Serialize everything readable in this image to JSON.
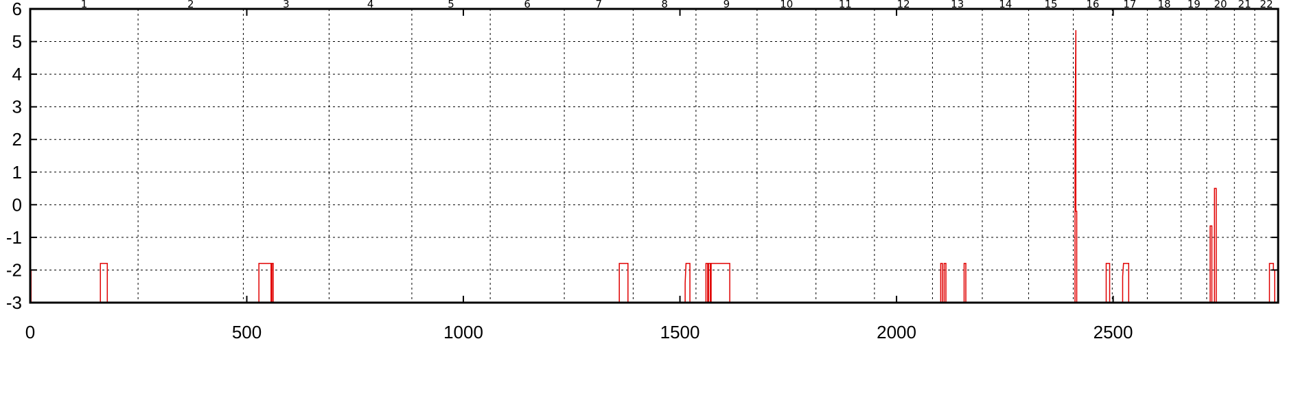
{
  "chart_data": {
    "type": "line",
    "title": "",
    "xlabel": "",
    "ylabel": "",
    "xlim": [
      0,
      2881
    ],
    "ylim": [
      -3,
      6
    ],
    "x_ticks": [
      0,
      500,
      1000,
      1500,
      2000,
      2500
    ],
    "y_ticks": [
      -3,
      -2,
      -1,
      0,
      1,
      2,
      3,
      4,
      5,
      6
    ],
    "grid": true,
    "line_color": "#e00000",
    "chromosomes": [
      {
        "label": "1",
        "start": 0,
        "end": 249
      },
      {
        "label": "2",
        "start": 249,
        "end": 492
      },
      {
        "label": "3",
        "start": 492,
        "end": 690
      },
      {
        "label": "4",
        "start": 690,
        "end": 881
      },
      {
        "label": "5",
        "start": 881,
        "end": 1062
      },
      {
        "label": "6",
        "start": 1062,
        "end": 1233
      },
      {
        "label": "7",
        "start": 1233,
        "end": 1392
      },
      {
        "label": "8",
        "start": 1392,
        "end": 1537
      },
      {
        "label": "9",
        "start": 1537,
        "end": 1678
      },
      {
        "label": "10",
        "start": 1678,
        "end": 1814
      },
      {
        "label": "11",
        "start": 1814,
        "end": 1949
      },
      {
        "label": "12",
        "start": 1949,
        "end": 2083
      },
      {
        "label": "13",
        "start": 2083,
        "end": 2198
      },
      {
        "label": "14",
        "start": 2198,
        "end": 2305
      },
      {
        "label": "15",
        "start": 2305,
        "end": 2408
      },
      {
        "label": "16",
        "start": 2408,
        "end": 2498
      },
      {
        "label": "17",
        "start": 2498,
        "end": 2579
      },
      {
        "label": "18",
        "start": 2579,
        "end": 2657
      },
      {
        "label": "19",
        "start": 2657,
        "end": 2716
      },
      {
        "label": "20",
        "start": 2716,
        "end": 2780
      },
      {
        "label": "21",
        "start": 2780,
        "end": 2827
      },
      {
        "label": "22",
        "start": 2827,
        "end": 2881
      }
    ],
    "series": [
      {
        "x": [
          0,
          0,
          2,
          2,
          162,
          162,
          178,
          178,
          528,
          528,
          556,
          556,
          558,
          558,
          561,
          561,
          1360,
          1360,
          1380,
          1380,
          1512,
          1512,
          1514,
          1514,
          1523,
          1523,
          1560,
          1560,
          1564,
          1564,
          1566,
          1566,
          1570,
          1570,
          1572,
          1572,
          1575,
          1575,
          1615,
          1615,
          2102,
          2102,
          2106,
          2106,
          2110,
          2110,
          2114,
          2114,
          2156,
          2156,
          2160,
          2160,
          2412,
          2412,
          2414,
          2414,
          2416,
          2416,
          2418,
          2418,
          2484,
          2484,
          2492,
          2492,
          2522,
          2522,
          2524,
          2524,
          2536,
          2536,
          2724,
          2724,
          2728,
          2728,
          2734,
          2734,
          2738,
          2738,
          2861,
          2861,
          2870,
          2870,
          2873,
          2873,
          2881
        ],
        "y": [
          -3,
          -2,
          -2,
          -3,
          -3,
          -1.8,
          -1.8,
          -3,
          -3,
          -1.8,
          -1.8,
          -3,
          -3,
          -1.8,
          -1.8,
          -3,
          -3,
          -1.8,
          -1.8,
          -3,
          -3,
          -2.4,
          -1.8,
          -1.8,
          -1.8,
          -3,
          -3,
          -1.8,
          -1.8,
          -3,
          -3,
          -1.8,
          -1.8,
          -3,
          -3,
          -1.8,
          -1.8,
          -1.8,
          -1.8,
          -3,
          -3,
          -1.8,
          -1.8,
          -3,
          -3,
          -1.8,
          -1.8,
          -3,
          -3,
          -1.8,
          -1.8,
          -3,
          -3,
          2.2,
          5.35,
          -0.2,
          -0.2,
          -3,
          -3,
          -3,
          -3,
          -1.8,
          -1.8,
          -3,
          -3,
          -2.2,
          -1.8,
          -1.8,
          -1.8,
          -3,
          -3,
          -0.65,
          -0.65,
          -3,
          -3,
          0.5,
          0.5,
          -3,
          -3,
          -1.8,
          -1.8,
          -2,
          -2,
          -3,
          -3
        ]
      }
    ]
  }
}
